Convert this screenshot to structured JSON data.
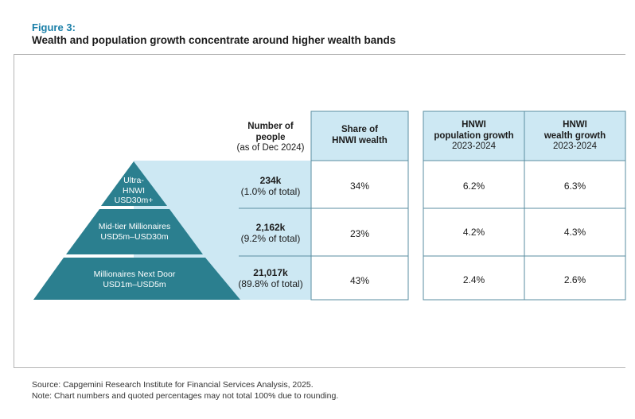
{
  "figure": {
    "label": "Figure 3:",
    "title": "Wealth and population growth concentrate around higher wealth bands"
  },
  "colors": {
    "pyramid": "#2b7f8f",
    "highlight": "#cde8f3",
    "border": "#5a8ea0",
    "accent": "#1a7fa8"
  },
  "headers": {
    "people": [
      "Number of",
      "people",
      "(as of Dec 2024)"
    ],
    "share": [
      "Share of",
      "HNWI wealth"
    ],
    "pop_growth": [
      "HNWI",
      "population growth",
      "2023-2024"
    ],
    "wealth_growth": [
      "HNWI",
      "wealth growth",
      "2023-2024"
    ]
  },
  "tiers": [
    {
      "label": [
        "Ultra-",
        "HNWI",
        "USD30m+"
      ],
      "people": "234k",
      "people_share": "(1.0% of total)",
      "wealth_share": "34%",
      "pop_growth": "6.2%",
      "wealth_growth": "6.3%"
    },
    {
      "label": [
        "Mid-tier Millionaires",
        "USD5m–USD30m"
      ],
      "people": "2,162k",
      "people_share": "(9.2% of total)",
      "wealth_share": "23%",
      "pop_growth": "4.2%",
      "wealth_growth": "4.3%"
    },
    {
      "label": [
        "Millionaires Next Door",
        "USD1m–USD5m"
      ],
      "people": "21,017k",
      "people_share": "(89.8% of total)",
      "wealth_share": "43%",
      "pop_growth": "2.4%",
      "wealth_growth": "2.6%"
    }
  ],
  "chart_data": {
    "type": "table",
    "columns": [
      "Number of people (as of Dec 2024)",
      "Share of HNWI wealth",
      "HNWI population growth 2023-2024",
      "HNWI wealth growth 2023-2024"
    ],
    "rows": [
      {
        "tier": "Ultra-HNWI USD30m+",
        "people_k": 234,
        "people_pct_of_total": 1.0,
        "wealth_share_pct": 34,
        "population_growth_pct": 6.2,
        "wealth_growth_pct": 6.3
      },
      {
        "tier": "Mid-tier Millionaires USD5m–USD30m",
        "people_k": 2162,
        "people_pct_of_total": 9.2,
        "wealth_share_pct": 23,
        "population_growth_pct": 4.2,
        "wealth_growth_pct": 4.3
      },
      {
        "tier": "Millionaires Next Door USD1m–USD5m",
        "people_k": 21017,
        "people_pct_of_total": 89.8,
        "wealth_share_pct": 43,
        "population_growth_pct": 2.4,
        "wealth_growth_pct": 2.6
      }
    ]
  },
  "footnotes": {
    "source": "Source: Capgemini Research Institute for Financial Services Analysis, 2025.",
    "note": "Note: Chart numbers and quoted percentages may not total 100% due to rounding."
  }
}
